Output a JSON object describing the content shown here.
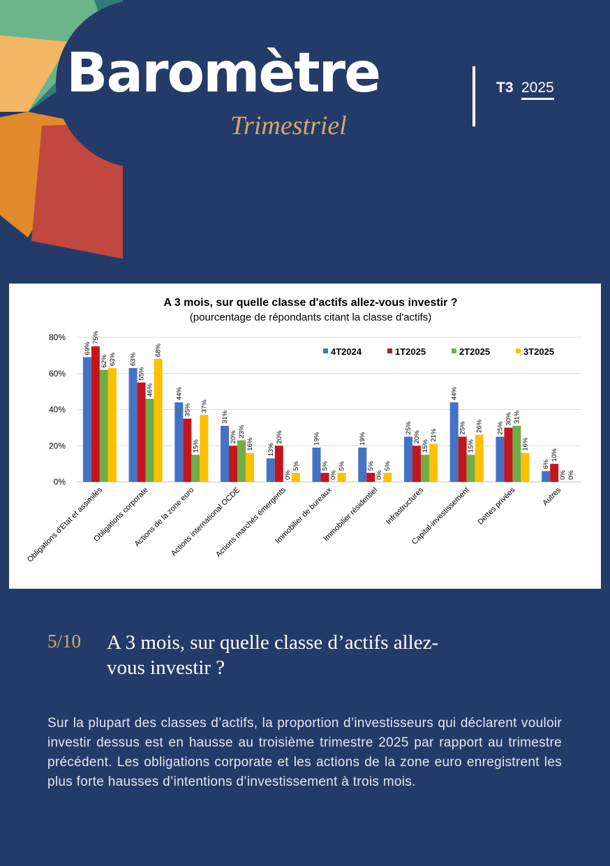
{
  "header": {
    "title": "Baromètre",
    "subtitle": "Trimestriel",
    "period": "T3",
    "year": "2025"
  },
  "chart_data": {
    "type": "bar",
    "title": "A 3 mois, sur quelle classe d'actifs allez-vous investir ?",
    "subtitle": "(pourcentage de répondants citant la classe d'actifs)",
    "categories": [
      "Obligations d'Etat et assimilés",
      "Obligations corporate",
      "Actions de la zone euro",
      "Actions international OCDE",
      "Actions marchés émergents",
      "Immobilier de bureaux",
      "Immobilier résidentiel",
      "Infrastructures",
      "Capital-investissement",
      "Dettes privées",
      "Autres"
    ],
    "series": [
      {
        "name": "4T2024",
        "color": "#4472c4",
        "values": [
          69,
          63,
          44,
          31,
          13,
          19,
          19,
          25,
          44,
          25,
          6
        ],
        "value_labels": [
          "69%",
          "63%",
          "44%",
          "31%",
          "13%",
          "19%",
          "19%",
          "25%",
          "44%",
          "25%",
          "6%"
        ]
      },
      {
        "name": "1T2025",
        "color": "#c3161c",
        "values": [
          75,
          55,
          35,
          20,
          20,
          5,
          5,
          20,
          25,
          30,
          10
        ],
        "value_labels": [
          "75%",
          "55%",
          "35%",
          "20%",
          "20%",
          "5%",
          "5%",
          "20%",
          "25%",
          "30%",
          "10%"
        ]
      },
      {
        "name": "2T2025",
        "color": "#70ad47",
        "values": [
          62,
          46,
          15,
          23,
          0,
          0,
          0,
          15,
          15,
          31,
          0
        ],
        "value_labels": [
          "62%",
          "46%",
          "15%",
          "23%",
          "0%",
          "0%",
          "0%",
          "15%",
          "15%",
          "31%",
          "0%"
        ]
      },
      {
        "name": "3T2025",
        "color": "#ffc000",
        "values": [
          63,
          68,
          37,
          16,
          5,
          5,
          5,
          21,
          26,
          16,
          0
        ],
        "value_labels": [
          "63%",
          "68%",
          "37%",
          "16%",
          "5%",
          "5%",
          "5%",
          "21%",
          "26%",
          "16%",
          "0%"
        ]
      }
    ],
    "ylim": [
      0,
      80
    ],
    "yticks": [
      {
        "value": 0,
        "label": "0%"
      },
      {
        "value": 20,
        "label": "20%"
      },
      {
        "value": 40,
        "label": "40%"
      },
      {
        "value": 60,
        "label": "60%"
      },
      {
        "value": 80,
        "label": "80%"
      }
    ],
    "grid": true
  },
  "section": {
    "number": "5/10",
    "heading": "A 3 mois, sur quelle classe d’actifs allez-vous investir ?",
    "body": "Sur la plupart des classes d’actifs, la proportion d’investisseurs qui déclarent vouloir investir dessus est en hausse au troisième trimestre 2025 par rapport au trimestre précédent. Les obligations corporate et les actions de la zone euro enregistrent les plus forte hausses d’intentions d’investissement à trois mois."
  }
}
